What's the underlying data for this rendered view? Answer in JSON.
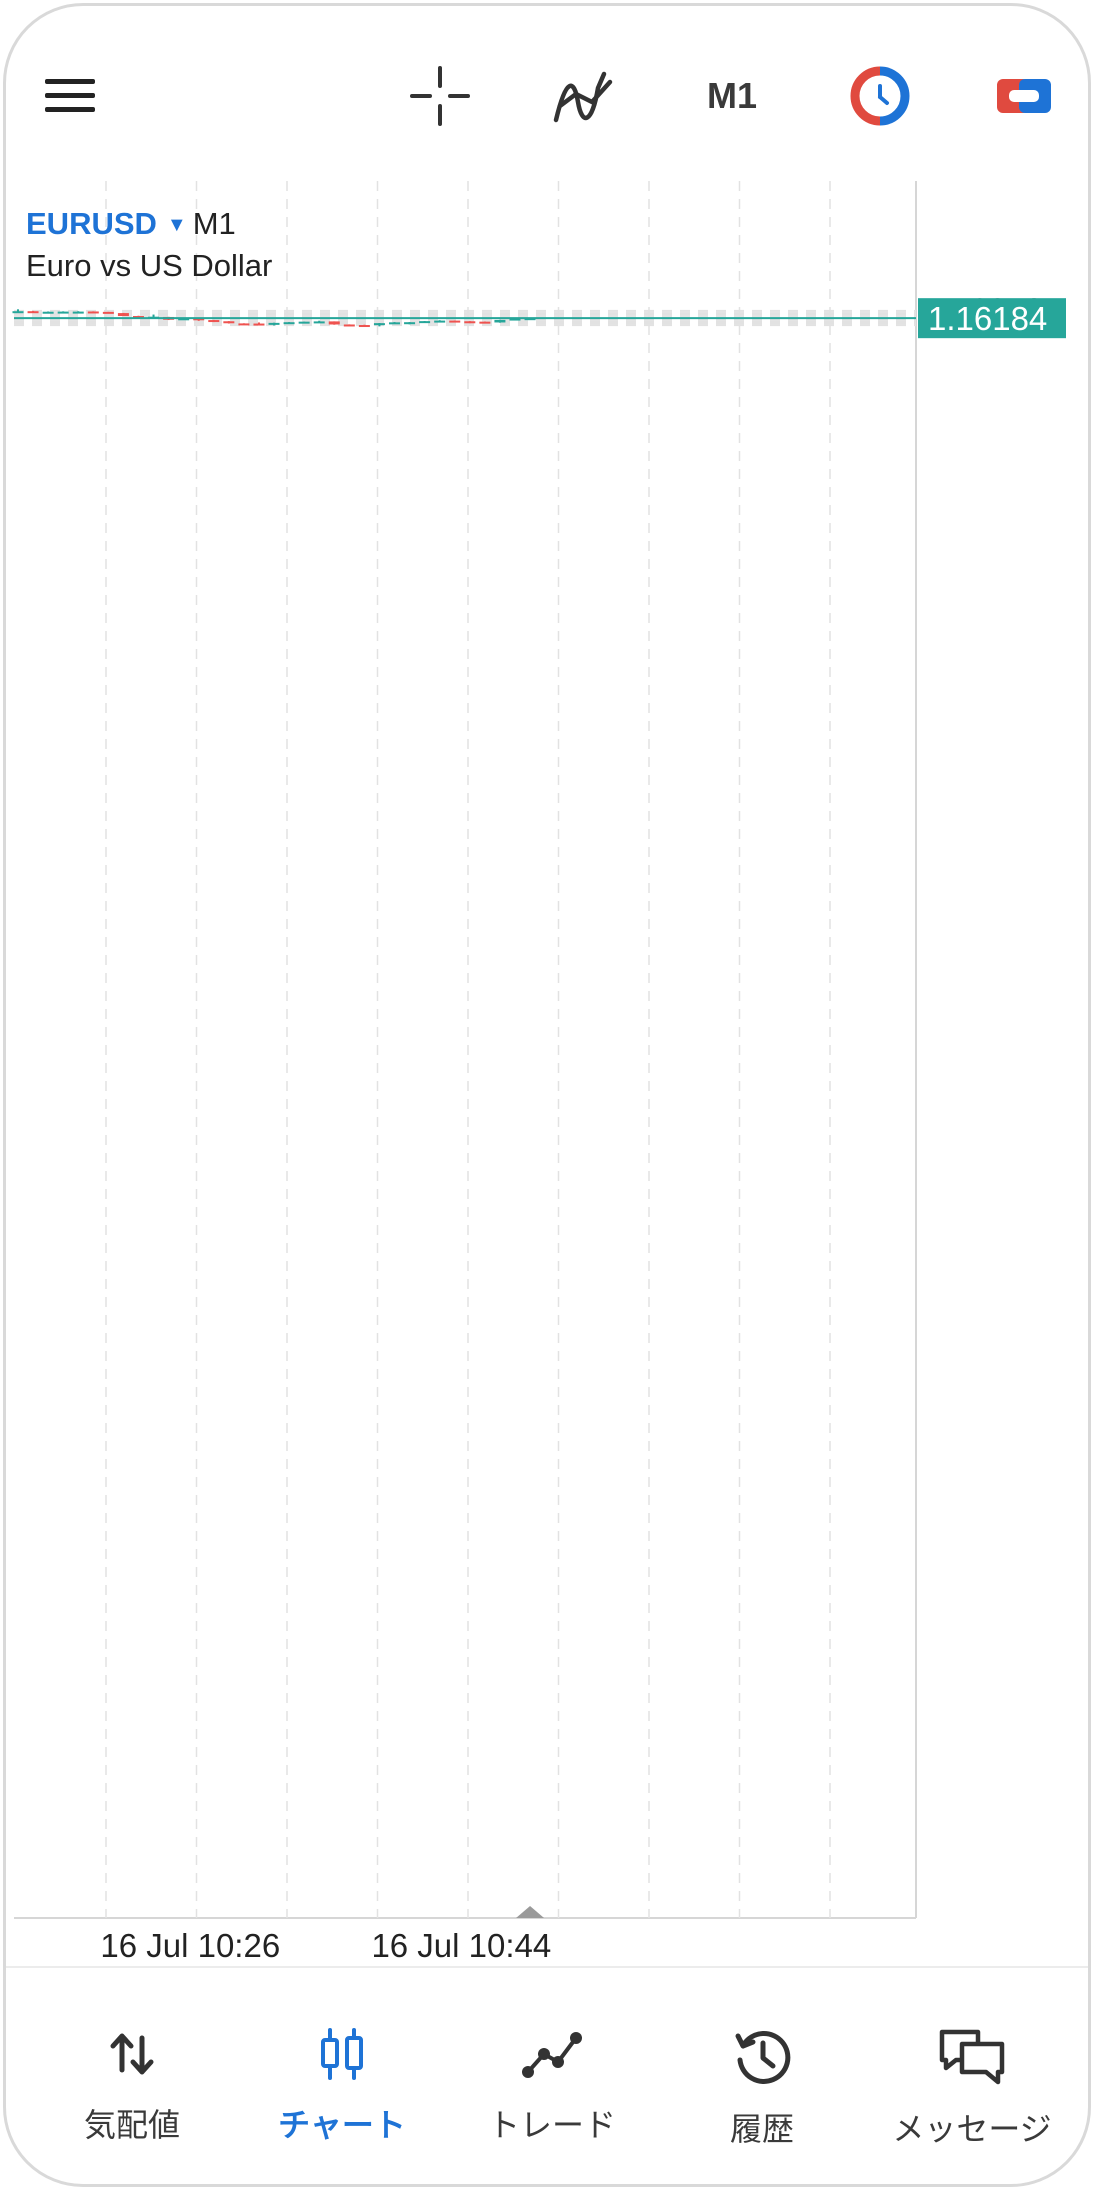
{
  "toolbar": {
    "menu_icon": "hamburger-menu-icon",
    "crosshair_icon": "crosshair-icon",
    "indicators_icon": "indicators-icon",
    "timeframe": "M1",
    "trade_icon": "one-click-trading-icon",
    "objects_icon": "objects-icon"
  },
  "symbol": {
    "name": "EURUSD",
    "timeframe": "M1",
    "description": "Euro vs US Dollar"
  },
  "colors": {
    "bull": "#26a69a",
    "bear": "#ef5350",
    "accent": "#1e73d6",
    "current_price_bg": "#26a69a"
  },
  "chart_data": {
    "type": "candlestick",
    "y_ticks": [
      "1.16240",
      "1.16230",
      "1.16220",
      "1.16210",
      "1.16200",
      "1.16190",
      "1.16180",
      "1.16170",
      "1.16160",
      "1.16150",
      "1.16140",
      "1.16130"
    ],
    "ylim": [
      1.161215,
      1.162475
    ],
    "current_price": "1.16184",
    "x_labels": [
      {
        "label": "16 Jul 10:26",
        "index": 6
      },
      {
        "label": "16 Jul 10:44",
        "index": 24
      }
    ],
    "grid": true,
    "candles": [
      {
        "o": 1.16233,
        "h": 1.1625,
        "l": 1.1623,
        "c": 1.16236
      },
      {
        "o": 1.16236,
        "h": 1.16238,
        "l": 1.16226,
        "c": 1.16227
      },
      {
        "o": 1.16227,
        "h": 1.16234,
        "l": 1.16226,
        "c": 1.16232
      },
      {
        "o": 1.16232,
        "h": 1.16235,
        "l": 1.16228,
        "c": 1.16233
      },
      {
        "o": 1.16232,
        "h": 1.16236,
        "l": 1.16226,
        "c": 1.16233
      },
      {
        "o": 1.16234,
        "h": 1.16235,
        "l": 1.16226,
        "c": 1.16231
      },
      {
        "o": 1.16231,
        "h": 1.16231,
        "l": 1.1622,
        "c": 1.16221
      },
      {
        "o": 1.16222,
        "h": 1.16223,
        "l": 1.162,
        "c": 1.162
      },
      {
        "o": 1.162,
        "h": 1.16202,
        "l": 1.1619,
        "c": 1.16192
      },
      {
        "o": 1.16188,
        "h": 1.16211,
        "l": 1.16186,
        "c": 1.16195
      },
      {
        "o": 1.16193,
        "h": 1.16194,
        "l": 1.1617,
        "c": 1.16172
      },
      {
        "o": 1.16172,
        "h": 1.16189,
        "l": 1.16171,
        "c": 1.16183
      },
      {
        "o": 1.16183,
        "h": 1.16183,
        "l": 1.16164,
        "c": 1.1617
      },
      {
        "o": 1.1617,
        "h": 1.16171,
        "l": 1.16155,
        "c": 1.16161
      },
      {
        "o": 1.16161,
        "h": 1.16162,
        "l": 1.16144,
        "c": 1.16147
      },
      {
        "o": 1.16145,
        "h": 1.16146,
        "l": 1.1614,
        "c": 1.16144
      },
      {
        "o": 1.16144,
        "h": 1.16152,
        "l": 1.16134,
        "c": 1.16136
      },
      {
        "o": 1.16136,
        "h": 1.1615,
        "l": 1.1613,
        "c": 1.16149
      },
      {
        "o": 1.16152,
        "h": 1.16155,
        "l": 1.16149,
        "c": 1.16154
      },
      {
        "o": 1.16154,
        "h": 1.16158,
        "l": 1.1615,
        "c": 1.16158
      },
      {
        "o": 1.16158,
        "h": 1.16165,
        "l": 1.16155,
        "c": 1.1616
      },
      {
        "o": 1.1616,
        "h": 1.1616,
        "l": 1.16135,
        "c": 1.16137
      },
      {
        "o": 1.16137,
        "h": 1.16138,
        "l": 1.1613,
        "c": 1.16133
      },
      {
        "o": 1.16133,
        "h": 1.16135,
        "l": 1.16129,
        "c": 1.16132
      },
      {
        "o": 1.16132,
        "h": 1.16148,
        "l": 1.16123,
        "c": 1.16147
      },
      {
        "o": 1.16147,
        "h": 1.16155,
        "l": 1.16144,
        "c": 1.16153
      },
      {
        "o": 1.16152,
        "h": 1.16155,
        "l": 1.16138,
        "c": 1.16154
      },
      {
        "o": 1.16154,
        "h": 1.16163,
        "l": 1.1615,
        "c": 1.16162
      },
      {
        "o": 1.16162,
        "h": 1.16169,
        "l": 1.16158,
        "c": 1.16166
      },
      {
        "o": 1.16166,
        "h": 1.16167,
        "l": 1.16159,
        "c": 1.16162
      },
      {
        "o": 1.16161,
        "h": 1.16162,
        "l": 1.16147,
        "c": 1.1616
      },
      {
        "o": 1.16158,
        "h": 1.16159,
        "l": 1.16146,
        "c": 1.16152
      },
      {
        "o": 1.16152,
        "h": 1.16172,
        "l": 1.1615,
        "c": 1.16171
      },
      {
        "o": 1.16171,
        "h": 1.16183,
        "l": 1.1617,
        "c": 1.16181
      },
      {
        "o": 1.1618,
        "h": 1.16186,
        "l": 1.16177,
        "c": 1.16184
      }
    ]
  },
  "nav": [
    {
      "label": "気配値",
      "icon": "quotes-arrows-icon",
      "active": false
    },
    {
      "label": "チャート",
      "icon": "chart-candles-icon",
      "active": true
    },
    {
      "label": "トレード",
      "icon": "trade-line-icon",
      "active": false
    },
    {
      "label": "履歴",
      "icon": "history-clock-icon",
      "active": false
    },
    {
      "label": "メッセージ",
      "icon": "messages-icon",
      "active": false
    }
  ]
}
